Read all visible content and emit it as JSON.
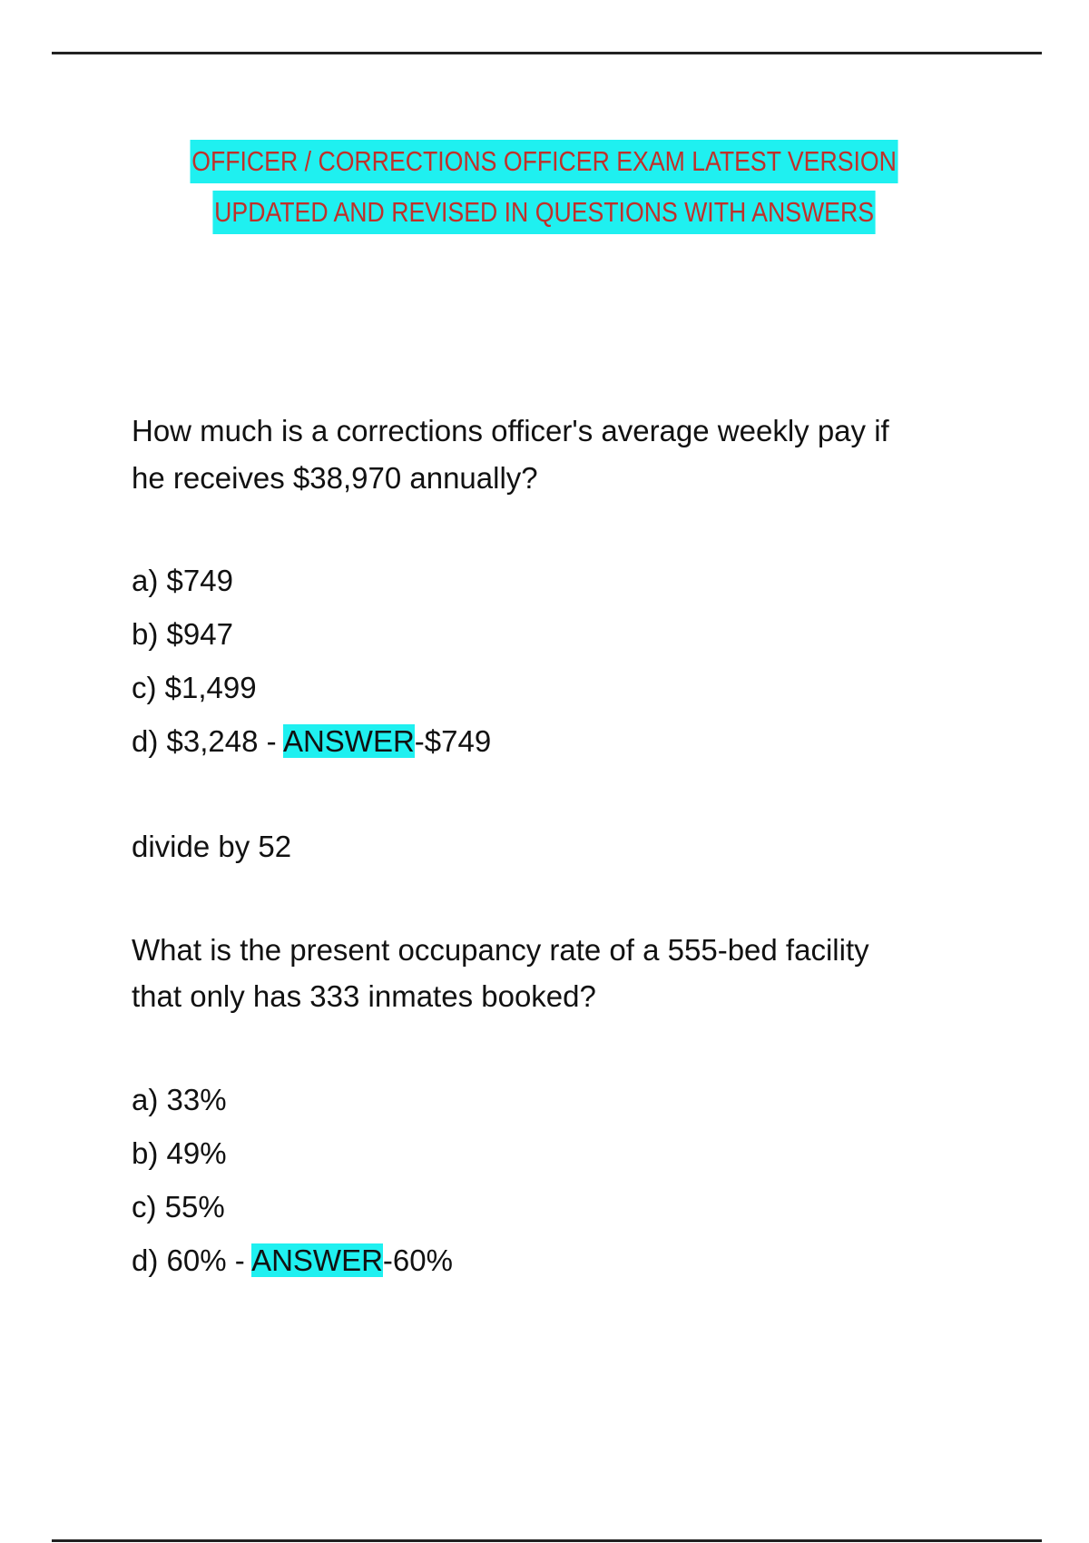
{
  "title": {
    "line1": "OFFICER / CORRECTIONS OFFICER EXAM LATEST VERSION",
    "line2": "UPDATED AND REVISED IN QUESTIONS  WITH ANSWERS"
  },
  "questions": [
    {
      "lines": [
        "How much is a corrections officer's average weekly pay if",
        "he receives $38,970 annually?"
      ],
      "options": [
        "a) $749",
        "b) $947",
        "c) $1,499"
      ],
      "last_option": "d) $3,248 - ",
      "answer_label": "ANSWER",
      "answer_value": "-$749",
      "explanation": "divide by 52"
    },
    {
      "lines": [
        "What is the present occupancy rate of a 555-bed facility",
        "that only has 333 inmates booked?"
      ],
      "options": [
        "a) 33%",
        "b) 49%",
        "c) 55%"
      ],
      "last_option": "d) 60% - ",
      "answer_label": "ANSWER",
      "answer_value": "-60%"
    }
  ],
  "colors": {
    "highlight": "#1ff0f0",
    "title_text": "#c0302a"
  }
}
